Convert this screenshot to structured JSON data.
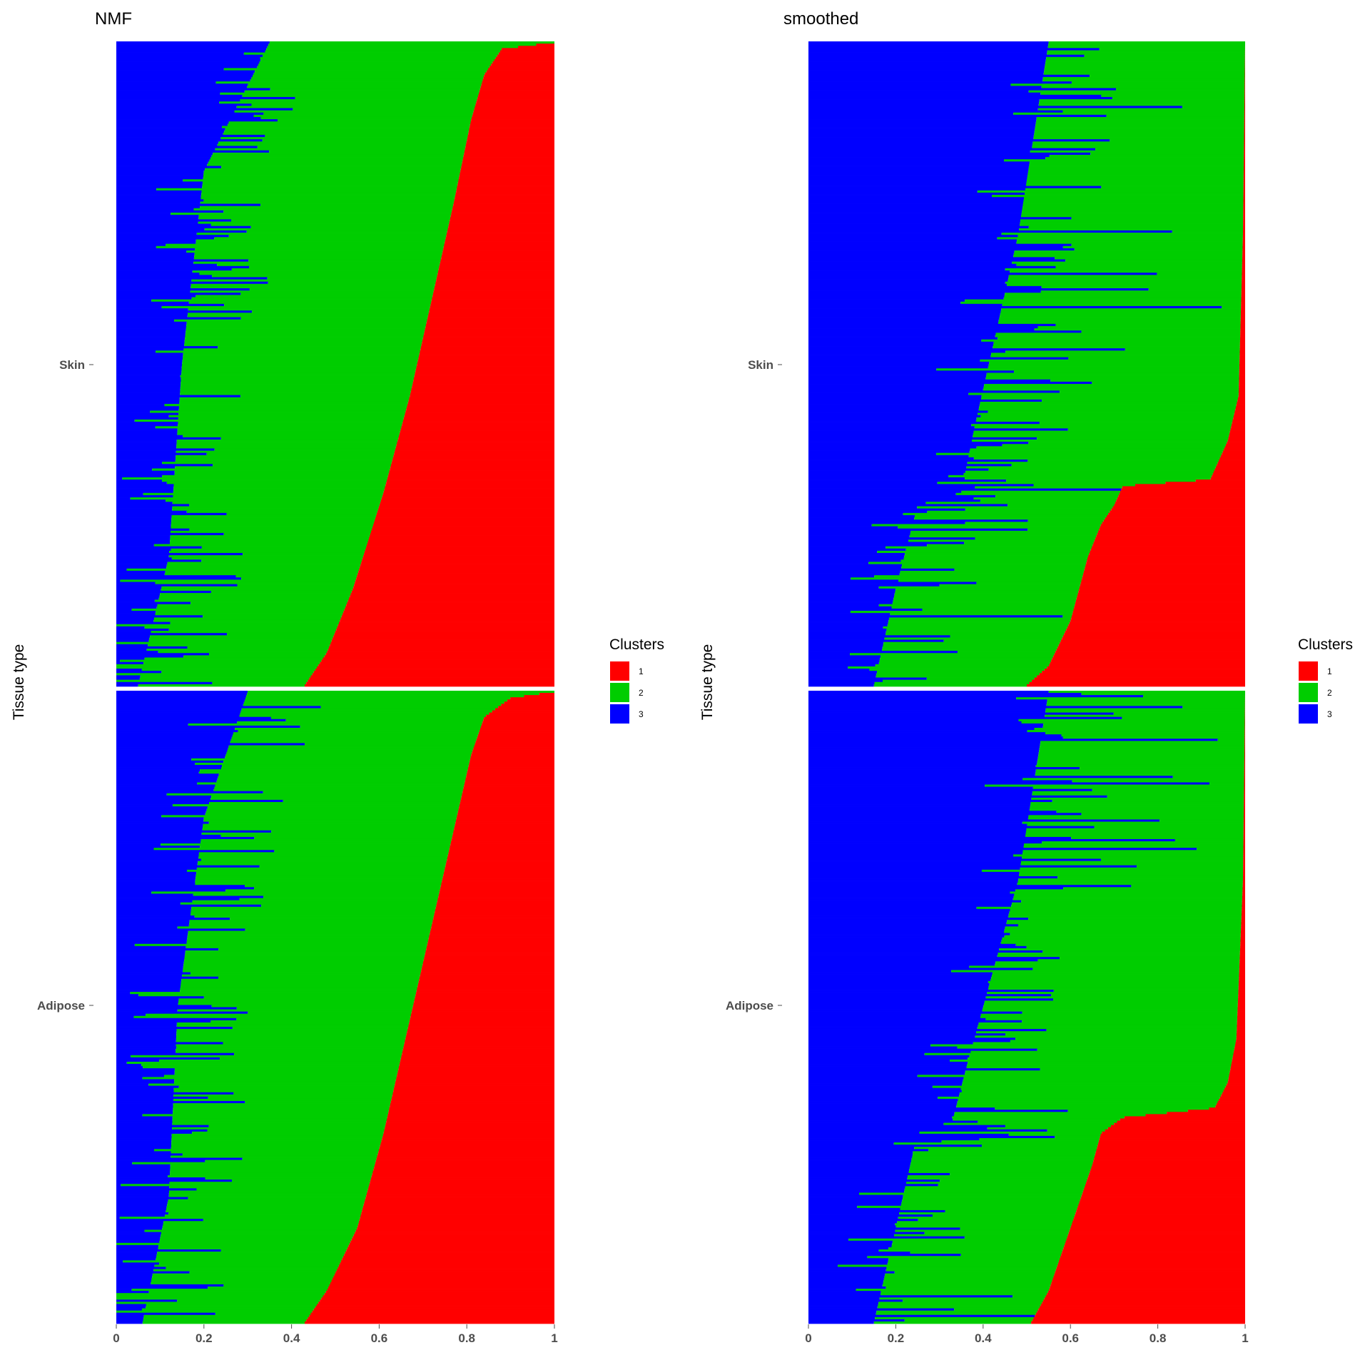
{
  "colors": {
    "cluster_1": "#FF0000",
    "cluster_2": "#00CD00",
    "cluster_3": "#0000FF",
    "tick": "#4d4d4d"
  },
  "chart_data": [
    {
      "type": "bar",
      "orientation": "horizontal-stacked",
      "title": "NMF",
      "ylabel": "Tissue type",
      "xlabel": "",
      "xlim": [
        0,
        1
      ],
      "x_ticks": [
        "0",
        "0.2",
        "0.4",
        "0.6",
        "0.8",
        "1"
      ],
      "facets": [
        "Skin",
        "Adipose"
      ],
      "legend": {
        "title": "Clusters",
        "position": "right",
        "entries": [
          "1",
          "2",
          "3"
        ]
      },
      "grid": false,
      "profile_note": "cumulative proportions per sample, sorted by cluster 1",
      "profiles": [
        {
          "facet": "Skin",
          "n_samples": 290,
          "cluster1_start": [
            [
              0,
              1.0
            ],
            [
              0.01,
              0.88
            ],
            [
              0.05,
              0.84
            ],
            [
              0.12,
              0.81
            ],
            [
              0.25,
              0.77
            ],
            [
              0.4,
              0.72
            ],
            [
              0.55,
              0.67
            ],
            [
              0.7,
              0.61
            ],
            [
              0.85,
              0.54
            ],
            [
              0.95,
              0.48
            ],
            [
              1,
              0.43
            ]
          ],
          "cluster3_end": [
            [
              0,
              0.35
            ],
            [
              0.2,
              0.2
            ],
            [
              0.5,
              0.15
            ],
            [
              0.8,
              0.12
            ],
            [
              1,
              0.05
            ]
          ]
        },
        {
          "facet": "Adipose",
          "n_samples": 290,
          "cluster1_start": [
            [
              0,
              1.0
            ],
            [
              0.01,
              0.9
            ],
            [
              0.04,
              0.84
            ],
            [
              0.1,
              0.81
            ],
            [
              0.25,
              0.76
            ],
            [
              0.4,
              0.71
            ],
            [
              0.55,
              0.66
            ],
            [
              0.7,
              0.61
            ],
            [
              0.85,
              0.55
            ],
            [
              0.95,
              0.48
            ],
            [
              1,
              0.43
            ]
          ],
          "cluster3_end": [
            [
              0,
              0.3
            ],
            [
              0.2,
              0.2
            ],
            [
              0.5,
              0.14
            ],
            [
              0.8,
              0.12
            ],
            [
              1,
              0.06
            ]
          ]
        }
      ]
    },
    {
      "type": "bar",
      "orientation": "horizontal-stacked",
      "title": "smoothed",
      "ylabel": "Tissue type",
      "xlabel": "",
      "xlim": [
        0,
        1
      ],
      "x_ticks": [
        "0",
        "0.2",
        "0.4",
        "0.6",
        "0.8",
        "1"
      ],
      "facets": [
        "Skin",
        "Adipose"
      ],
      "legend": {
        "title": "Clusters",
        "position": "right",
        "entries": [
          "1",
          "2",
          "3"
        ]
      },
      "grid": false,
      "profile_note": "cumulative proportions per sample, sorted by cluster 1",
      "profiles": [
        {
          "facet": "Skin",
          "n_samples": 290,
          "cluster1_start": [
            [
              0,
              1.0
            ],
            [
              0.3,
              0.995
            ],
            [
              0.55,
              0.985
            ],
            [
              0.62,
              0.96
            ],
            [
              0.68,
              0.92
            ],
            [
              0.69,
              0.72
            ],
            [
              0.72,
              0.7
            ],
            [
              0.75,
              0.67
            ],
            [
              0.8,
              0.64
            ],
            [
              0.9,
              0.6
            ],
            [
              0.97,
              0.55
            ],
            [
              1,
              0.5
            ]
          ],
          "cluster3_end": [
            [
              0,
              0.55
            ],
            [
              0.3,
              0.48
            ],
            [
              0.6,
              0.38
            ],
            [
              0.7,
              0.35
            ],
            [
              0.72,
              0.25
            ],
            [
              0.85,
              0.2
            ],
            [
              1,
              0.15
            ]
          ]
        },
        {
          "facet": "Adipose",
          "n_samples": 290,
          "cluster1_start": [
            [
              0,
              1.0
            ],
            [
              0.3,
              0.995
            ],
            [
              0.55,
              0.98
            ],
            [
              0.62,
              0.96
            ],
            [
              0.66,
              0.93
            ],
            [
              0.675,
              0.72
            ],
            [
              0.7,
              0.67
            ],
            [
              0.75,
              0.65
            ],
            [
              0.85,
              0.6
            ],
            [
              0.95,
              0.55
            ],
            [
              1,
              0.51
            ]
          ],
          "cluster3_end": [
            [
              0,
              0.55
            ],
            [
              0.3,
              0.48
            ],
            [
              0.6,
              0.36
            ],
            [
              0.68,
              0.33
            ],
            [
              0.7,
              0.25
            ],
            [
              0.85,
              0.2
            ],
            [
              1,
              0.15
            ]
          ]
        }
      ]
    }
  ]
}
